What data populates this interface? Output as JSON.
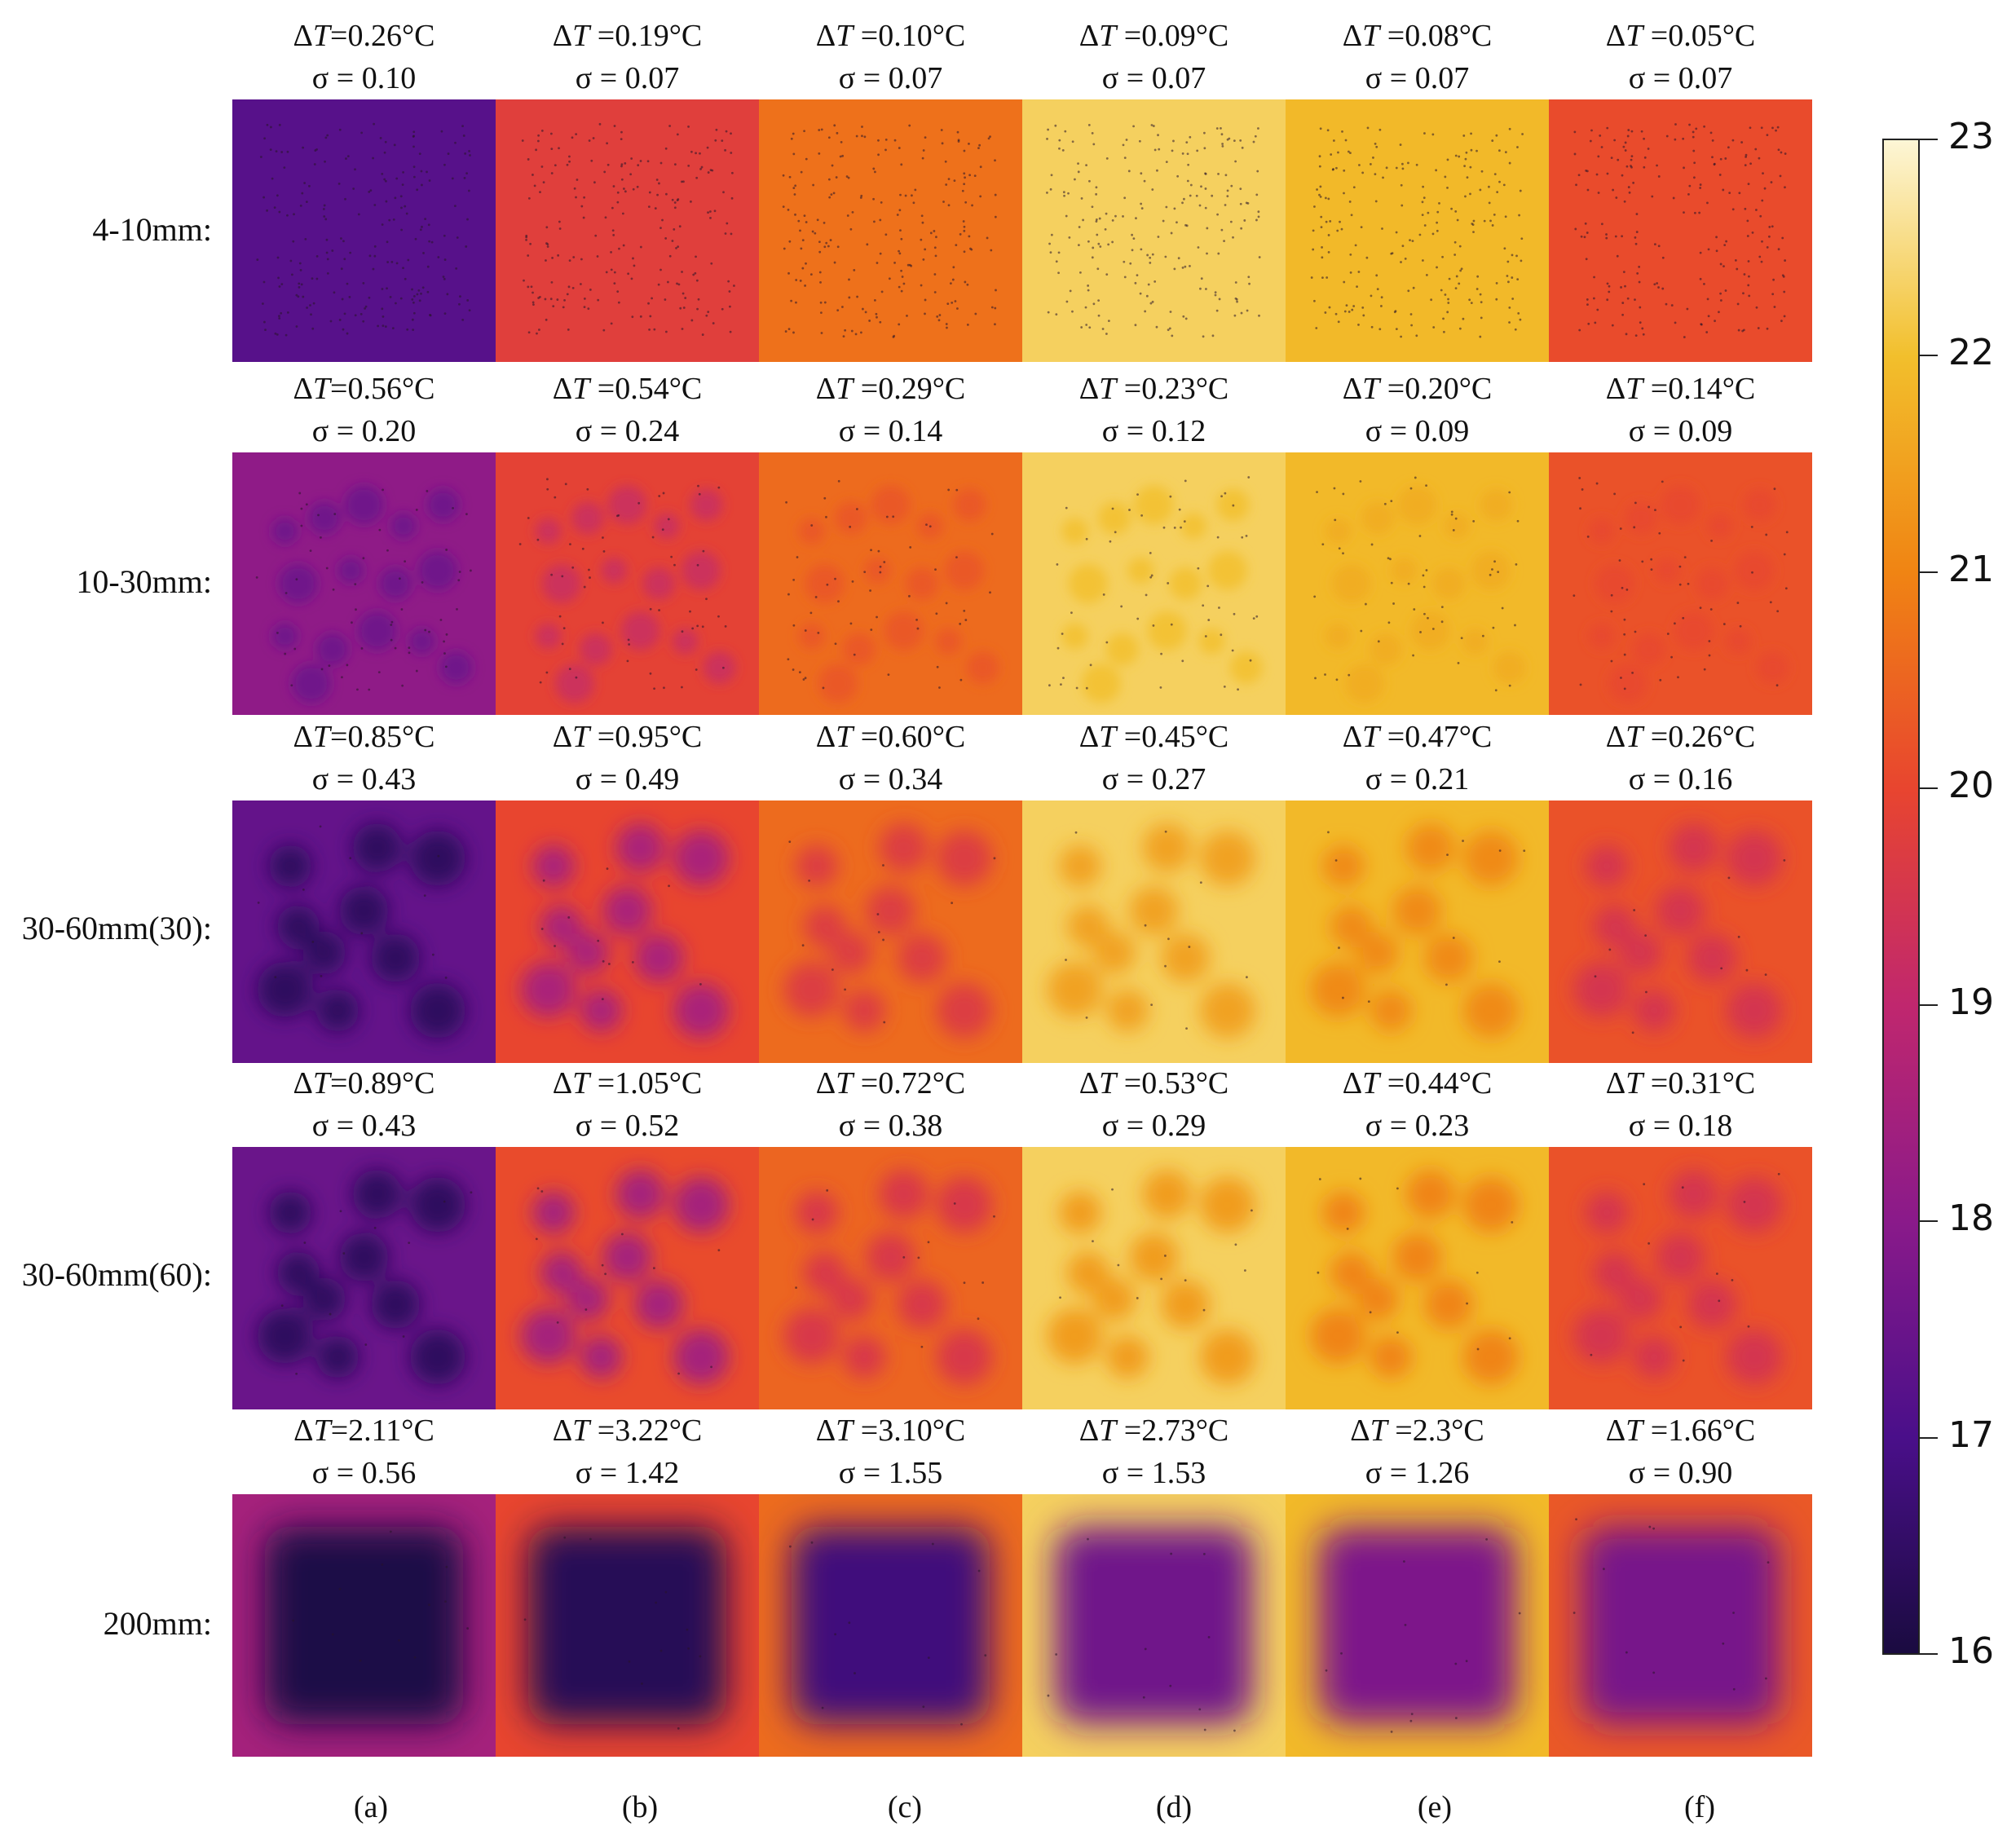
{
  "columns": [
    "(a)",
    "(b)",
    "(c)",
    "(d)",
    "(e)",
    "(f)"
  ],
  "rows": [
    {
      "label": "4-10mm:",
      "pattern": "fine-dots",
      "panels": [
        {
          "dt_prefix": "Δ",
          "dt_var": "T",
          "dt_value": "=0.26°C",
          "sigma": "σ = 0.10",
          "base_temp": 17.2,
          "center_temp": 17.1
        },
        {
          "dt_prefix": "Δ",
          "dt_var": "T",
          "dt_value": " =0.19°C",
          "sigma": "σ = 0.07",
          "base_temp": 19.8,
          "center_temp": 19.7
        },
        {
          "dt_prefix": "Δ",
          "dt_var": "T",
          "dt_value": " =0.10°C",
          "sigma": "σ = 0.07",
          "base_temp": 20.7,
          "center_temp": 20.6
        },
        {
          "dt_prefix": "Δ",
          "dt_var": "T",
          "dt_value": " =0.09°C",
          "sigma": "σ = 0.07",
          "base_temp": 22.3,
          "center_temp": 22.2
        },
        {
          "dt_prefix": "Δ",
          "dt_var": "T",
          "dt_value": " =0.08°C",
          "sigma": "σ = 0.07",
          "base_temp": 21.9,
          "center_temp": 21.8
        },
        {
          "dt_prefix": "Δ",
          "dt_var": "T",
          "dt_value": " =0.05°C",
          "sigma": "σ = 0.07",
          "base_temp": 20.1,
          "center_temp": 20.05
        }
      ]
    },
    {
      "label": "10-30mm:",
      "pattern": "small-blobs",
      "panels": [
        {
          "dt_prefix": "Δ",
          "dt_var": "T",
          "dt_value": "=0.56°C",
          "sigma": "σ = 0.20",
          "base_temp": 18.1,
          "center_temp": 17.6
        },
        {
          "dt_prefix": "Δ",
          "dt_var": "T",
          "dt_value": " =0.54°C",
          "sigma": "σ = 0.24",
          "base_temp": 19.9,
          "center_temp": 19.3
        },
        {
          "dt_prefix": "Δ",
          "dt_var": "T",
          "dt_value": " =0.29°C",
          "sigma": "σ = 0.14",
          "base_temp": 20.6,
          "center_temp": 20.3
        },
        {
          "dt_prefix": "Δ",
          "dt_var": "T",
          "dt_value": " =0.23°C",
          "sigma": "σ = 0.12",
          "base_temp": 22.3,
          "center_temp": 22.05
        },
        {
          "dt_prefix": "Δ",
          "dt_var": "T",
          "dt_value": " =0.20°C",
          "sigma": "σ = 0.09",
          "base_temp": 21.9,
          "center_temp": 21.7
        },
        {
          "dt_prefix": "Δ",
          "dt_var": "T",
          "dt_value": " =0.14°C",
          "sigma": "σ = 0.09",
          "base_temp": 20.2,
          "center_temp": 20.05
        }
      ]
    },
    {
      "label": "30-60mm(30):",
      "pattern": "large-blobs",
      "panels": [
        {
          "dt_prefix": "Δ",
          "dt_var": "T",
          "dt_value": "=0.85°C",
          "sigma": "σ = 0.43",
          "base_temp": 17.4,
          "center_temp": 16.4
        },
        {
          "dt_prefix": "Δ",
          "dt_var": "T",
          "dt_value": " =0.95°C",
          "sigma": "σ = 0.49",
          "base_temp": 20.0,
          "center_temp": 18.6
        },
        {
          "dt_prefix": "Δ",
          "dt_var": "T",
          "dt_value": " =0.60°C",
          "sigma": "σ = 0.34",
          "base_temp": 20.6,
          "center_temp": 19.7
        },
        {
          "dt_prefix": "Δ",
          "dt_var": "T",
          "dt_value": " =0.45°C",
          "sigma": "σ = 0.27",
          "base_temp": 22.3,
          "center_temp": 21.5
        },
        {
          "dt_prefix": "Δ",
          "dt_var": "T",
          "dt_value": " =0.47°C",
          "sigma": "σ = 0.21",
          "base_temp": 21.9,
          "center_temp": 21.1
        },
        {
          "dt_prefix": "Δ",
          "dt_var": "T",
          "dt_value": " =0.26°C",
          "sigma": "σ = 0.16",
          "base_temp": 20.2,
          "center_temp": 19.5
        }
      ]
    },
    {
      "label": "30-60mm(60):",
      "pattern": "large-blobs",
      "panels": [
        {
          "dt_prefix": "Δ",
          "dt_var": "T",
          "dt_value": "=0.89°C",
          "sigma": "σ = 0.43",
          "base_temp": 17.5,
          "center_temp": 16.4
        },
        {
          "dt_prefix": "Δ",
          "dt_var": "T",
          "dt_value": " =1.05°C",
          "sigma": "σ = 0.52",
          "base_temp": 20.1,
          "center_temp": 18.5
        },
        {
          "dt_prefix": "Δ",
          "dt_var": "T",
          "dt_value": " =0.72°C",
          "sigma": "σ = 0.38",
          "base_temp": 20.5,
          "center_temp": 19.6
        },
        {
          "dt_prefix": "Δ",
          "dt_var": "T",
          "dt_value": " =0.53°C",
          "sigma": "σ = 0.29",
          "base_temp": 22.3,
          "center_temp": 21.4
        },
        {
          "dt_prefix": "Δ",
          "dt_var": "T",
          "dt_value": " =0.44°C",
          "sigma": "σ = 0.23",
          "base_temp": 21.9,
          "center_temp": 21.0
        },
        {
          "dt_prefix": "Δ",
          "dt_var": "T",
          "dt_value": " =0.31°C",
          "sigma": "σ = 0.18",
          "base_temp": 20.2,
          "center_temp": 19.5
        }
      ]
    },
    {
      "label": "200mm:",
      "pattern": "square",
      "panels": [
        {
          "dt_prefix": "Δ",
          "dt_var": "T",
          "dt_value": "=2.11°C",
          "sigma": "σ = 0.56",
          "base_temp": 18.5,
          "center_temp": 16.1
        },
        {
          "dt_prefix": "Δ",
          "dt_var": "T",
          "dt_value": " =3.22°C",
          "sigma": "σ = 1.42",
          "base_temp": 20.0,
          "center_temp": 16.3
        },
        {
          "dt_prefix": "Δ",
          "dt_var": "T",
          "dt_value": " =3.10°C",
          "sigma": "σ = 1.55",
          "base_temp": 20.6,
          "center_temp": 16.8
        },
        {
          "dt_prefix": "Δ",
          "dt_var": "T",
          "dt_value": " =2.73°C",
          "sigma": "σ = 1.53",
          "base_temp": 22.3,
          "center_temp": 17.6
        },
        {
          "dt_prefix": "Δ",
          "dt_var": "T",
          "dt_value": " =2.3°C",
          "sigma": "σ = 1.26",
          "base_temp": 21.9,
          "center_temp": 17.8
        },
        {
          "dt_prefix": "Δ",
          "dt_var": "T",
          "dt_value": " =1.66°C",
          "sigma": "σ = 0.90",
          "base_temp": 20.3,
          "center_temp": 17.7
        }
      ]
    }
  ],
  "colorbar": {
    "min": 16,
    "max": 23,
    "ticks": [
      "23",
      "22",
      "21",
      "20",
      "19",
      "18",
      "17",
      "16"
    ],
    "stops": [
      "#1a0b40",
      "#4a0f8a",
      "#8a1a8a",
      "#c0276e",
      "#e8452f",
      "#f08413",
      "#f2bf2c",
      "#fdf6d6"
    ]
  }
}
